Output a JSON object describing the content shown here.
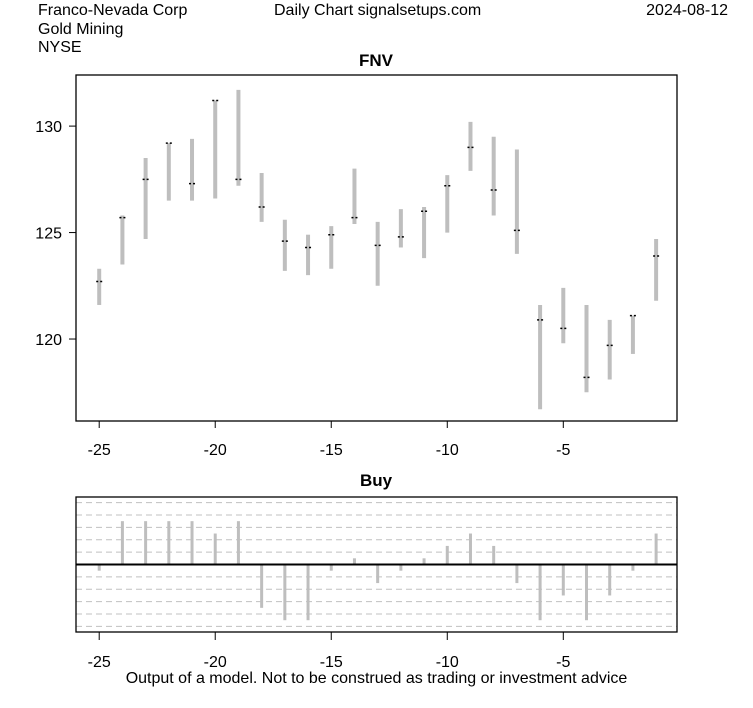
{
  "header": {
    "company": "Franco-Nevada Corp",
    "sector": "Gold Mining",
    "exchange": "NYSE",
    "center": "Daily Chart signalsetups.com",
    "date": "2024-08-12"
  },
  "footer": "Output of a model. Not to be construed as trading or investment advice",
  "chart_data": [
    {
      "type": "ohlc",
      "title": "FNV",
      "x": [
        -25,
        -24,
        -23,
        -22,
        -21,
        -20,
        -19,
        -18,
        -17,
        -16,
        -15,
        -14,
        -13,
        -12,
        -11,
        -10,
        -9,
        -8,
        -7,
        -6,
        -5,
        -4,
        -3,
        -2,
        -1
      ],
      "high": [
        123.3,
        125.8,
        128.5,
        129.2,
        129.4,
        131.2,
        131.7,
        127.8,
        125.6,
        124.9,
        125.3,
        128.0,
        125.5,
        126.1,
        126.2,
        127.7,
        130.2,
        129.5,
        128.9,
        121.6,
        122.4,
        121.6,
        120.9,
        121.1,
        124.7
      ],
      "low": [
        121.6,
        123.5,
        124.7,
        126.5,
        126.5,
        126.6,
        127.2,
        125.5,
        123.2,
        123.0,
        123.3,
        125.4,
        122.5,
        124.3,
        123.8,
        125.0,
        127.9,
        125.8,
        124.0,
        116.7,
        119.8,
        117.5,
        118.1,
        119.3,
        121.8
      ],
      "close": [
        122.7,
        125.7,
        127.5,
        129.2,
        127.3,
        131.2,
        127.5,
        126.2,
        124.6,
        124.3,
        124.9,
        125.7,
        124.4,
        124.8,
        126.0,
        127.2,
        129.0,
        127.0,
        125.1,
        120.9,
        120.5,
        118.2,
        119.7,
        121.1,
        123.9
      ],
      "xticks": [
        -25,
        -20,
        -15,
        -10,
        -5
      ],
      "yticks": [
        120,
        125,
        130
      ],
      "xlim": [
        -26,
        -0.1
      ],
      "ylim": [
        116.15,
        132.4
      ],
      "colors": {
        "bar": "#bebebe",
        "close": "#000000"
      }
    },
    {
      "type": "bar",
      "title": "Buy",
      "x": [
        -25,
        -24,
        -23,
        -22,
        -21,
        -20,
        -19,
        -18,
        -17,
        -16,
        -15,
        -14,
        -13,
        -12,
        -11,
        -10,
        -9,
        -8,
        -7,
        -6,
        -5,
        -4,
        -3,
        -2,
        -1
      ],
      "values": [
        -0.5,
        3.5,
        3.5,
        3.5,
        3.5,
        2.5,
        3.5,
        -3.5,
        -4.5,
        -4.5,
        -0.5,
        0.5,
        -1.5,
        -0.5,
        0.5,
        1.5,
        2.5,
        1.5,
        -1.5,
        -4.5,
        -2.5,
        -4.5,
        -2.5,
        -0.5,
        2.5
      ],
      "xticks": [
        -25,
        -20,
        -15,
        -10,
        -5
      ],
      "gridlines": [
        -5,
        -4,
        -3,
        -2,
        -1,
        1,
        2,
        3,
        4,
        5
      ],
      "xlim": [
        -26,
        -0.1
      ],
      "ylim": [
        -5.45,
        5.45
      ],
      "colors": {
        "bar": "#bebebe",
        "grid": "#c0c0c0"
      }
    }
  ]
}
